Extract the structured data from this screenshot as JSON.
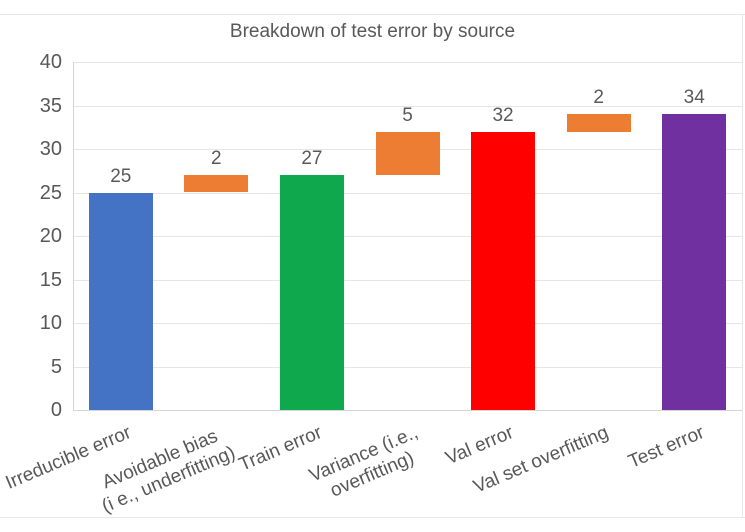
{
  "page": {
    "background_color": "#ffffff",
    "frame_border_color": "#e8e8e8"
  },
  "chart_data": {
    "type": "bar",
    "subtype": "waterfall",
    "title": "Breakdown of test error by source",
    "title_color": "#58585a",
    "xlabel": "",
    "ylabel": "",
    "ylim": [
      0,
      40
    ],
    "yticks": [
      0,
      5,
      10,
      15,
      20,
      25,
      30,
      35,
      40
    ],
    "grid": true,
    "legend_position": "none",
    "x_label_rotation_deg": -23,
    "grid_color": "#e6e6e6",
    "axis_line_color": "#d5d5d5",
    "tick_text_color": "#58585a",
    "data_label_color": "#595959",
    "categories": [
      "Irreducible error",
      "Avoidable bias (i e., underfitting)",
      "Train error",
      "Variance (i.e., overfitting)",
      "Val error",
      "Val set overfitting",
      "Test error"
    ],
    "bars": [
      {
        "label": "Irreducible error",
        "display": "Irreducible error",
        "value": 25,
        "base": 0,
        "top": 25,
        "color": "#4473c5",
        "data_label": "25"
      },
      {
        "label": "Avoidable bias (i e., underfitting)",
        "display": "Avoidable bias\n(i e., underfitting)",
        "value": 2,
        "base": 25,
        "top": 27,
        "color": "#ec7d33",
        "data_label": "2"
      },
      {
        "label": "Train error",
        "display": "Train error",
        "value": 27,
        "base": 0,
        "top": 27,
        "color": "#0fa84d",
        "data_label": "27"
      },
      {
        "label": "Variance (i.e., overfitting)",
        "display": "Variance (i.e.,\noverfitting)",
        "value": 5,
        "base": 27,
        "top": 32,
        "color": "#ec7d33",
        "data_label": "5"
      },
      {
        "label": "Val error",
        "display": "Val error",
        "value": 32,
        "base": 0,
        "top": 32,
        "color": "#ff0000",
        "data_label": "32"
      },
      {
        "label": "Val set overfitting",
        "display": "Val set overfitting",
        "value": 2,
        "base": 32,
        "top": 34,
        "color": "#ec7d33",
        "data_label": "2"
      },
      {
        "label": "Test error",
        "display": "Test error",
        "value": 34,
        "base": 0,
        "top": 34,
        "color": "#7030a0",
        "data_label": "34"
      }
    ]
  }
}
